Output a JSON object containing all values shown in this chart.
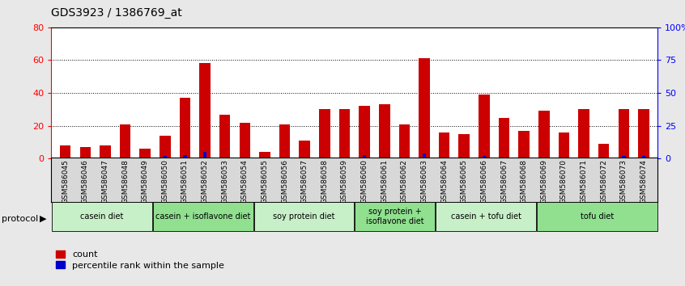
{
  "title": "GDS3923 / 1386769_at",
  "samples": [
    "GSM586045",
    "GSM586046",
    "GSM586047",
    "GSM586048",
    "GSM586049",
    "GSM586050",
    "GSM586051",
    "GSM586052",
    "GSM586053",
    "GSM586054",
    "GSM586055",
    "GSM586056",
    "GSM586057",
    "GSM586058",
    "GSM586059",
    "GSM586060",
    "GSM586061",
    "GSM586062",
    "GSM586063",
    "GSM586064",
    "GSM586065",
    "GSM586066",
    "GSM586067",
    "GSM586068",
    "GSM586069",
    "GSM586070",
    "GSM586071",
    "GSM586072",
    "GSM586073",
    "GSM586074"
  ],
  "counts": [
    8,
    7,
    8,
    21,
    6,
    14,
    37,
    58,
    27,
    22,
    4,
    21,
    11,
    30,
    30,
    32,
    33,
    21,
    61,
    16,
    15,
    39,
    25,
    17,
    29,
    16,
    30,
    9,
    30,
    30
  ],
  "percentile_ranks": [
    0,
    0,
    0,
    0,
    0,
    2,
    3,
    5,
    1,
    0,
    0,
    0,
    0,
    0,
    0,
    3,
    0,
    0,
    4,
    0,
    0,
    2,
    0,
    0,
    0,
    0,
    0,
    0,
    2,
    2
  ],
  "groups": [
    {
      "label": "casein diet",
      "start": 0,
      "end": 5,
      "color": "#c8f0c8"
    },
    {
      "label": "casein + isoflavone diet",
      "start": 5,
      "end": 10,
      "color": "#90e090"
    },
    {
      "label": "soy protein diet",
      "start": 10,
      "end": 15,
      "color": "#c8f0c8"
    },
    {
      "label": "soy protein +\nisoflavone diet",
      "start": 15,
      "end": 19,
      "color": "#90e090"
    },
    {
      "label": "casein + tofu diet",
      "start": 19,
      "end": 24,
      "color": "#c8f0c8"
    },
    {
      "label": "tofu diet",
      "start": 24,
      "end": 30,
      "color": "#90e090"
    }
  ],
  "bar_color_count": "#cc0000",
  "bar_color_pct": "#0000cc",
  "ylim_left": [
    0,
    80
  ],
  "ylim_right": [
    0,
    100
  ],
  "yticks_left": [
    0,
    20,
    40,
    60,
    80
  ],
  "yticks_right": [
    0,
    25,
    50,
    75,
    100
  ],
  "ytick_labels_right": [
    "0",
    "25",
    "50",
    "75",
    "100%"
  ],
  "protocol_label": "protocol",
  "legend_count": "count",
  "legend_pct": "percentile rank within the sample",
  "bg_color": "#e8e8e8",
  "plot_bg": "#ffffff"
}
